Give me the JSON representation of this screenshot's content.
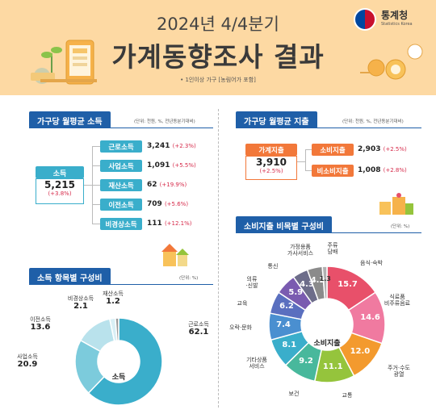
{
  "header": {
    "subtitle": "2024년 4/4분기",
    "title": "가계동향조사 결과",
    "note": "• 1인이상 가구 [농림어가 포함]",
    "logo_name": "통계청",
    "logo_en": "Statistics Korea"
  },
  "income": {
    "tab": "가구당 월평균 소득",
    "unit": "(단위: 천원, %, 전년동분기대비)",
    "total_label": "소득",
    "total_value": "5,215",
    "total_pct": "(+3.8%)",
    "items": [
      {
        "label": "근로소득",
        "value": "3,241",
        "pct": "(+2.3%)"
      },
      {
        "label": "사업소득",
        "value": "1,091",
        "pct": "(+5.5%)"
      },
      {
        "label": "재산소득",
        "value": "62",
        "pct": "(+19.9%)"
      },
      {
        "label": "이전소득",
        "value": "709",
        "pct": "(+5.6%)"
      },
      {
        "label": "비경상소득",
        "value": "111",
        "pct": "(+12.1%)"
      }
    ]
  },
  "expenditure": {
    "tab": "가구당 월평균 지출",
    "unit": "(단위: 천원, %, 전년동분기대비)",
    "total_label": "가계지출",
    "total_value": "3,910",
    "total_pct": "(+2.5%)",
    "items": [
      {
        "label": "소비지출",
        "value": "2,903",
        "pct": "(+2.5%)"
      },
      {
        "label": "비소비지출",
        "value": "1,008",
        "pct": "(+2.8%)"
      }
    ]
  },
  "income_composition": {
    "tab": "소득 항목별 구성비",
    "unit": "(단위: %)",
    "center": "소득",
    "chart_data": {
      "type": "pie",
      "categories": [
        "근로소득",
        "사업소득",
        "이전소득",
        "비경상소득",
        "재산소득"
      ],
      "values": [
        62.1,
        20.9,
        13.6,
        2.1,
        1.2
      ],
      "value_labels": [
        "62.1",
        "20.9",
        "13.6",
        "2.1",
        "1.2"
      ],
      "colors": [
        "#3aaecb",
        "#7ccbdc",
        "#b9e2ec",
        "#d9eff5",
        "#9a9a9a"
      ]
    }
  },
  "consumption_composition": {
    "tab": "소비지출 비목별 구성비",
    "unit": "(단위: %)",
    "center": "소비지출",
    "chart_data": {
      "type": "pie",
      "categories": [
        "음식·숙박",
        "식료품·비주류음료",
        "주거·수도·광열",
        "교통",
        "보건",
        "기타상품·서비스",
        "오락·문화",
        "교육",
        "의류·신발",
        "통신",
        "가정용품·가사서비스",
        "주류·담배"
      ],
      "values": [
        15.7,
        14.6,
        12.0,
        11.1,
        9.2,
        8.1,
        7.4,
        6.2,
        5.9,
        4.3,
        4.2,
        1.3
      ],
      "value_labels": [
        "15.7",
        "14.6",
        "12.0",
        "11.1",
        "9.2",
        "8.1",
        "7.4",
        "6.2",
        "5.9",
        "4.3",
        "4.2",
        "1.3"
      ],
      "colors": [
        "#e8506a",
        "#f07aa0",
        "#f39a2e",
        "#95c43c",
        "#48b89c",
        "#3aaecb",
        "#4a8fd0",
        "#5a6fbf",
        "#7a5bb0",
        "#6d6d8a",
        "#8b8b8b",
        "#b0b0b0"
      ]
    },
    "outer_labels": [
      "음식·숙박",
      "식료품\n비주류음료",
      "주거·수도\n광열",
      "교통",
      "보건",
      "기타상품\n서비스",
      "오락·문화",
      "교육",
      "의류\n·신발",
      "통신",
      "가정용품\n가사서비스",
      "주류\n담배"
    ]
  }
}
